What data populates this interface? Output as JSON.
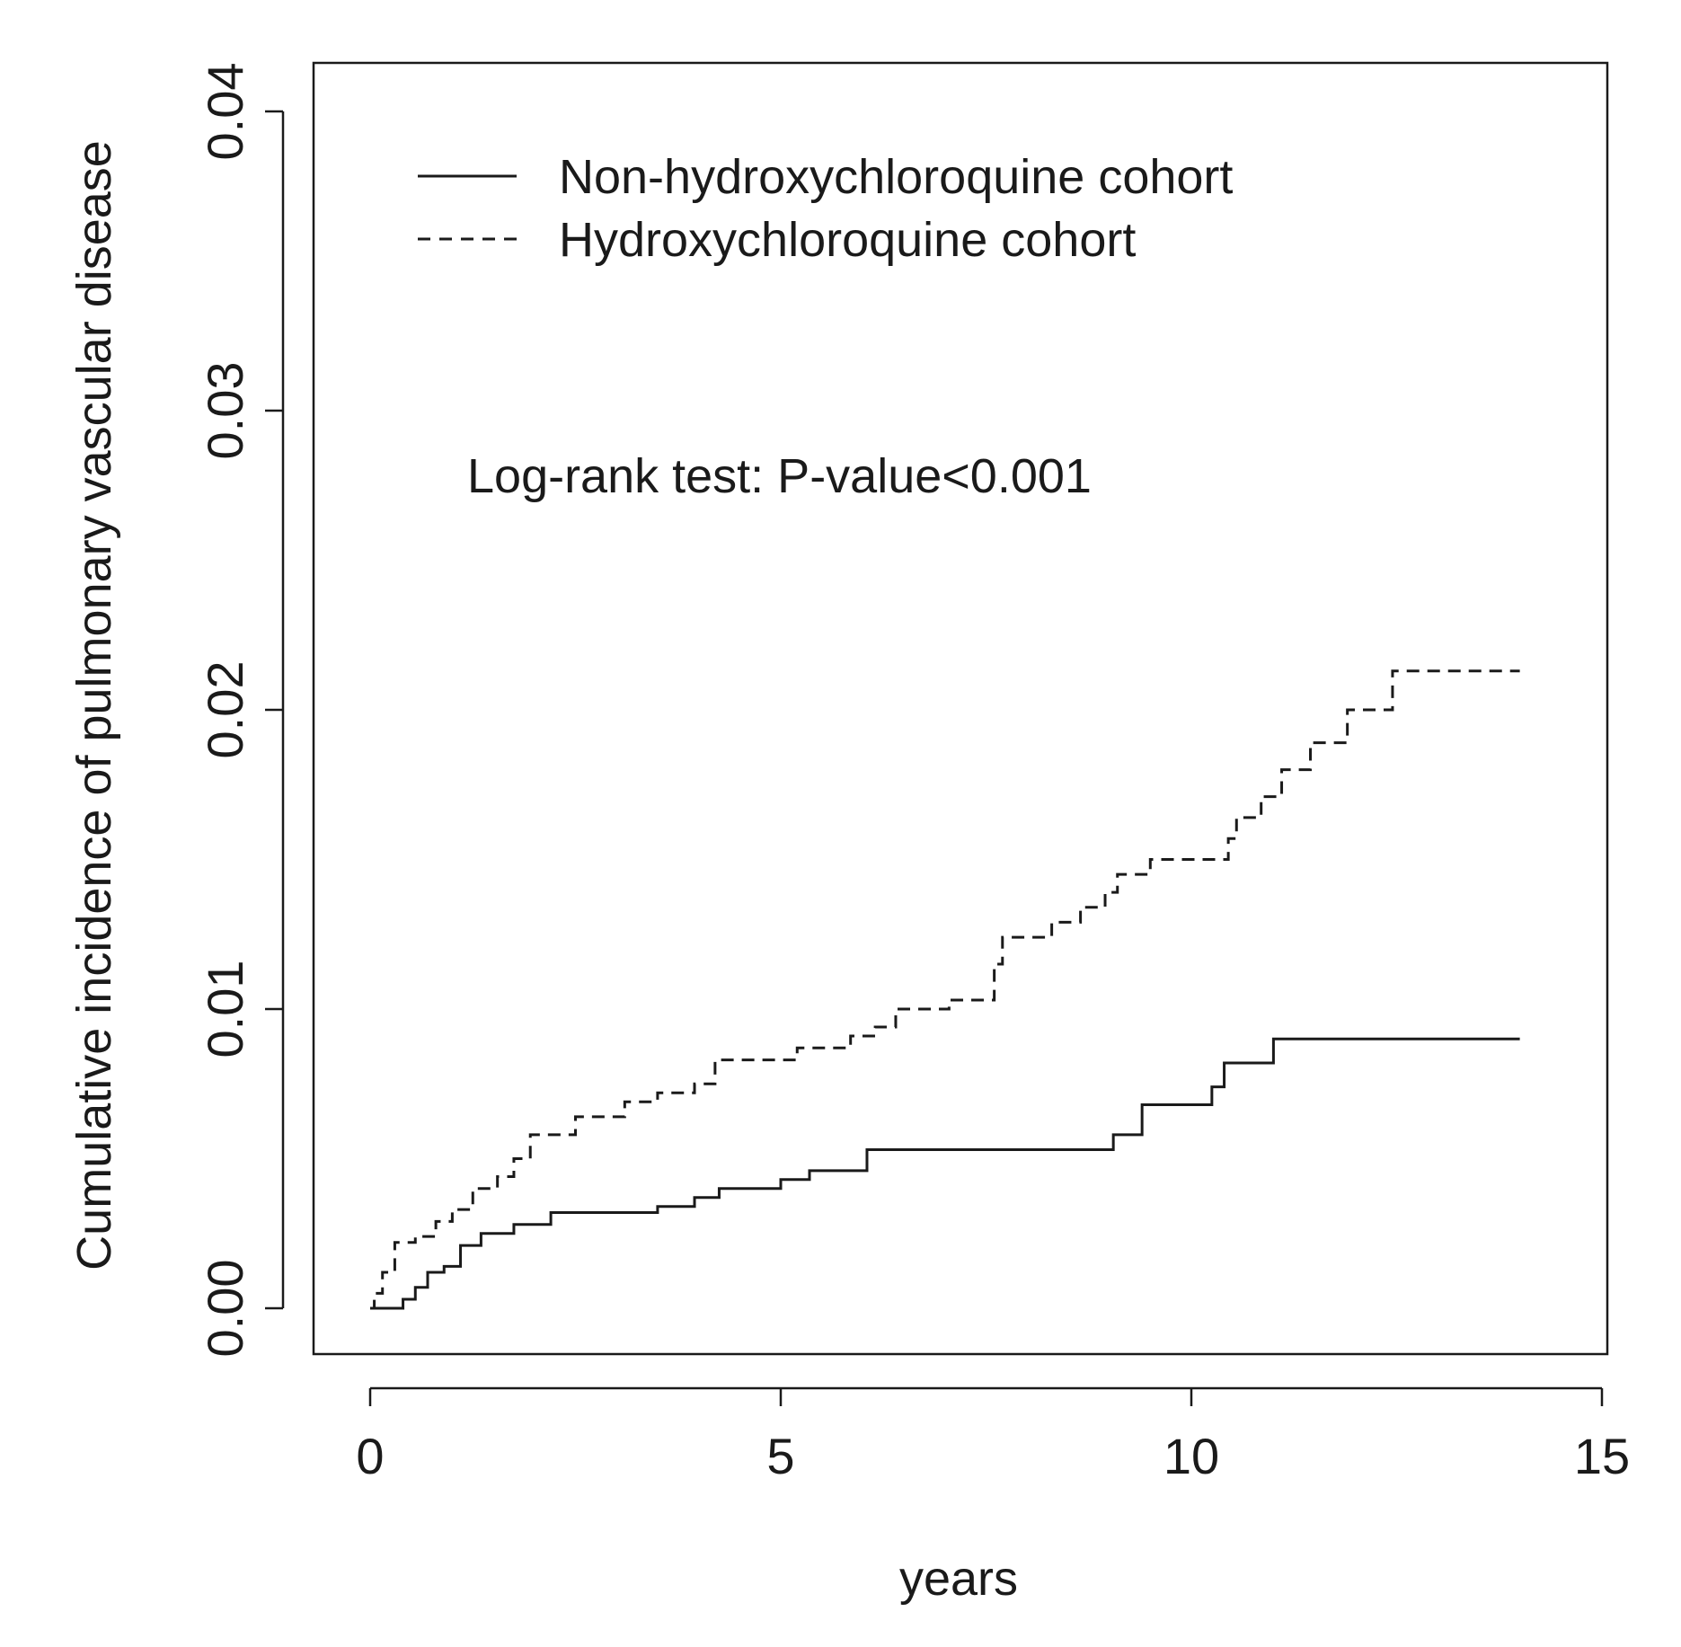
{
  "chart_data": {
    "type": "line",
    "title": "",
    "xlabel": "years",
    "ylabel": "Cumulative incidence of pulmonary vascular disease",
    "xlim": [
      0,
      15
    ],
    "ylim": [
      0,
      0.04
    ],
    "x_ticks": [
      "0",
      "5",
      "10",
      "15"
    ],
    "y_ticks": [
      "0.00",
      "0.01",
      "0.02",
      "0.03",
      "0.04"
    ],
    "grid": false,
    "legend_position": "top-left",
    "annotation": "Log-rank test: P-value<0.001",
    "series": [
      {
        "name": "Non-hydroxychloroquine cohort",
        "line_style": "solid",
        "points": [
          [
            0,
            0
          ],
          [
            0.3,
            0
          ],
          [
            0.4,
            0.0003
          ],
          [
            0.55,
            0.0007
          ],
          [
            0.7,
            0.0012
          ],
          [
            0.9,
            0.0014
          ],
          [
            1.1,
            0.0021
          ],
          [
            1.35,
            0.0025
          ],
          [
            1.75,
            0.0028
          ],
          [
            2.2,
            0.0032
          ],
          [
            3.5,
            0.0034
          ],
          [
            3.95,
            0.0037
          ],
          [
            4.25,
            0.004
          ],
          [
            5.0,
            0.0043
          ],
          [
            5.35,
            0.0046
          ],
          [
            6.05,
            0.0053
          ],
          [
            9.05,
            0.0058
          ],
          [
            9.4,
            0.0068
          ],
          [
            10.25,
            0.0074
          ],
          [
            10.4,
            0.0082
          ],
          [
            11.0,
            0.009
          ],
          [
            14.0,
            0.009
          ]
        ]
      },
      {
        "name": "Hydroxychloroquine cohort",
        "line_style": "dashed",
        "points": [
          [
            0,
            0
          ],
          [
            0.05,
            0.0005
          ],
          [
            0.15,
            0.0012
          ],
          [
            0.3,
            0.0022
          ],
          [
            0.55,
            0.0024
          ],
          [
            0.8,
            0.0029
          ],
          [
            1.0,
            0.0033
          ],
          [
            1.25,
            0.004
          ],
          [
            1.55,
            0.0044
          ],
          [
            1.75,
            0.005
          ],
          [
            1.95,
            0.0058
          ],
          [
            2.5,
            0.0064
          ],
          [
            3.1,
            0.0069
          ],
          [
            3.5,
            0.0072
          ],
          [
            3.95,
            0.0075
          ],
          [
            4.2,
            0.0083
          ],
          [
            5.2,
            0.0087
          ],
          [
            5.85,
            0.0091
          ],
          [
            6.15,
            0.0094
          ],
          [
            6.4,
            0.01
          ],
          [
            7.05,
            0.0103
          ],
          [
            7.6,
            0.0115
          ],
          [
            7.7,
            0.0124
          ],
          [
            8.3,
            0.0129
          ],
          [
            8.65,
            0.0134
          ],
          [
            8.95,
            0.0139
          ],
          [
            9.1,
            0.0145
          ],
          [
            9.5,
            0.015
          ],
          [
            10.45,
            0.0157
          ],
          [
            10.55,
            0.0164
          ],
          [
            10.85,
            0.0171
          ],
          [
            11.1,
            0.018
          ],
          [
            11.45,
            0.0189
          ],
          [
            11.9,
            0.02
          ],
          [
            12.45,
            0.0213
          ],
          [
            14.0,
            0.0213
          ]
        ]
      }
    ]
  }
}
